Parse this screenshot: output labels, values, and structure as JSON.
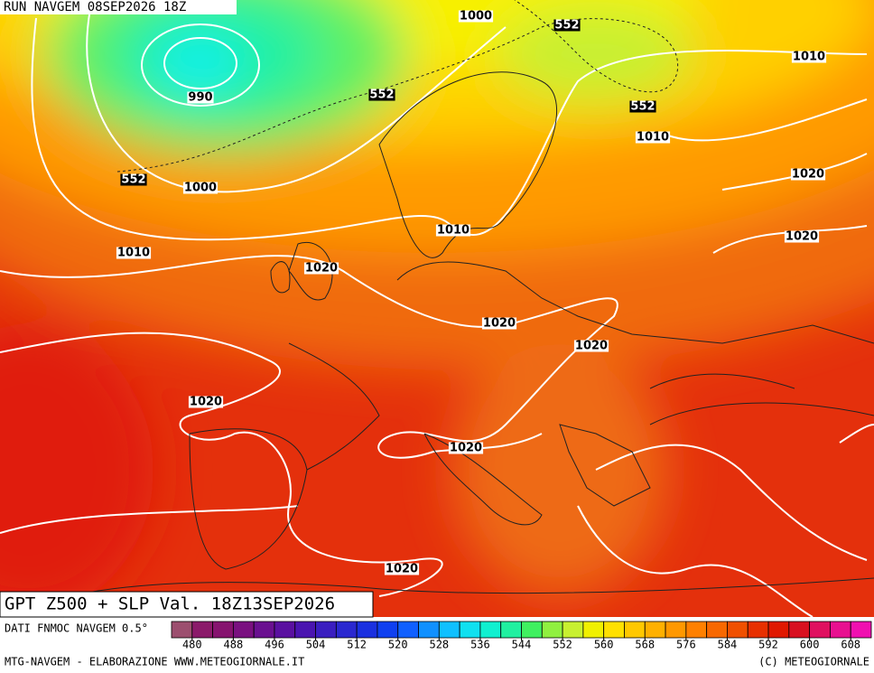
{
  "header": {
    "run": "RUN NAVGEM 08SEP2026 18Z"
  },
  "map": {
    "isobar_labels": [
      "1000",
      "990",
      "1000",
      "1010",
      "1020",
      "1010",
      "1020",
      "1020",
      "1020",
      "1020",
      "1020",
      "1010",
      "1010",
      "1020",
      "1020"
    ],
    "z500_labels": [
      "552",
      "552",
      "552",
      "552"
    ]
  },
  "footer": {
    "title": "GPT Z500 + SLP Val. 18Z13SEP2026",
    "source": "DATI FNMOC NAVGEM 0.5°",
    "credit": "MTG-NAVGEM - ELABORAZIONE WWW.METEOGIORNALE.IT",
    "copyright": "(C) METEOGIORNALE"
  },
  "colorbar": {
    "colors": [
      "#9c4f6f",
      "#8b1a6a",
      "#86136f",
      "#7a1080",
      "#6a1090",
      "#5a10a0",
      "#4a14b0",
      "#3a1ec0",
      "#2a28d0",
      "#1a30e0",
      "#0f40f0",
      "#1060ff",
      "#1090ff",
      "#10c0ff",
      "#10e0f0",
      "#10f0d0",
      "#20f0a0",
      "#40f060",
      "#90f040",
      "#c8f030",
      "#f0f000",
      "#ffe000",
      "#ffc800",
      "#ffb000",
      "#ff9800",
      "#ff8000",
      "#f86800",
      "#f05000",
      "#e83000",
      "#e01800",
      "#d81020",
      "#e01060",
      "#e81090",
      "#f010b0"
    ],
    "ticks": [
      480,
      488,
      496,
      504,
      512,
      520,
      528,
      536,
      544,
      552,
      560,
      568,
      576,
      584,
      592,
      600,
      608
    ]
  }
}
